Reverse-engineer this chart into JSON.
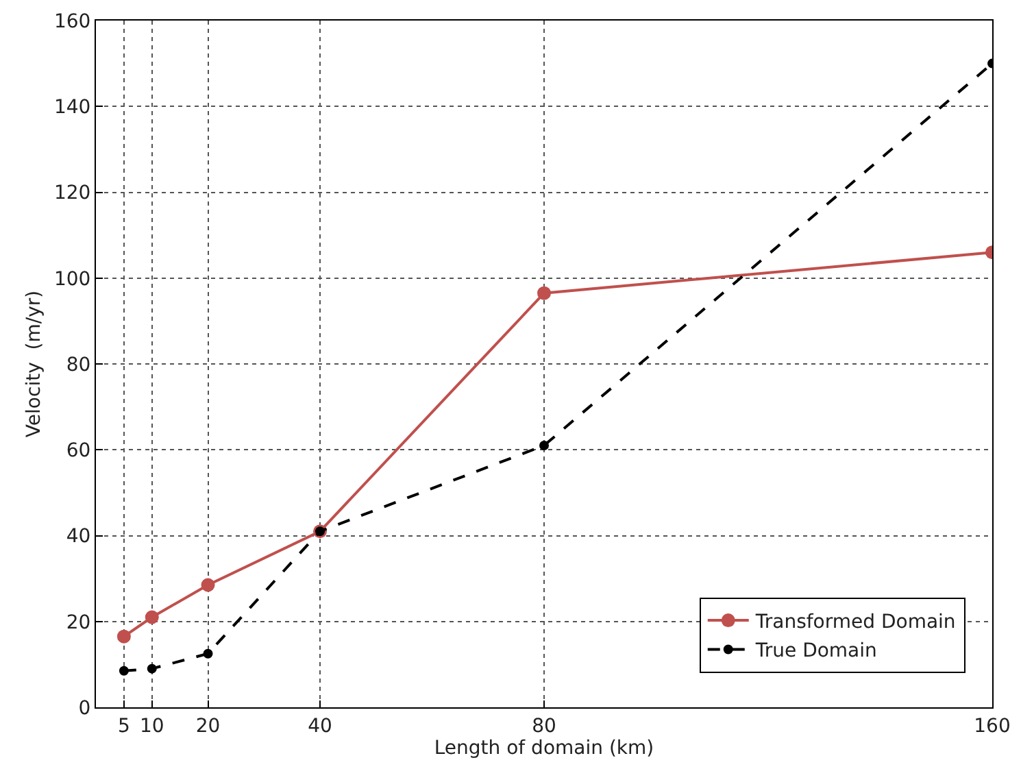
{
  "chart_data": {
    "type": "line",
    "xlabel": "Length of domain (km)",
    "ylabel": "Velocity  (m/yr)",
    "x": [
      5,
      10,
      20,
      40,
      80,
      160
    ],
    "series": [
      {
        "name": "Transformed Domain",
        "color": "#c0504d",
        "values": [
          16.5,
          21,
          28.5,
          41,
          96.5,
          106
        ],
        "line_style": "solid"
      },
      {
        "name": "True Domain",
        "color": "#000000",
        "values": [
          8.5,
          9,
          12.5,
          41,
          61,
          150
        ],
        "line_style": "dashed"
      }
    ],
    "xlim": [
      0,
      160
    ],
    "xticks": [
      5,
      10,
      20,
      40,
      80,
      160
    ],
    "ylim": [
      0,
      160
    ],
    "yticks": [
      0,
      20,
      40,
      60,
      80,
      100,
      120,
      140,
      160
    ],
    "grid": true,
    "legend": "bottom right",
    "marker": "circle"
  }
}
